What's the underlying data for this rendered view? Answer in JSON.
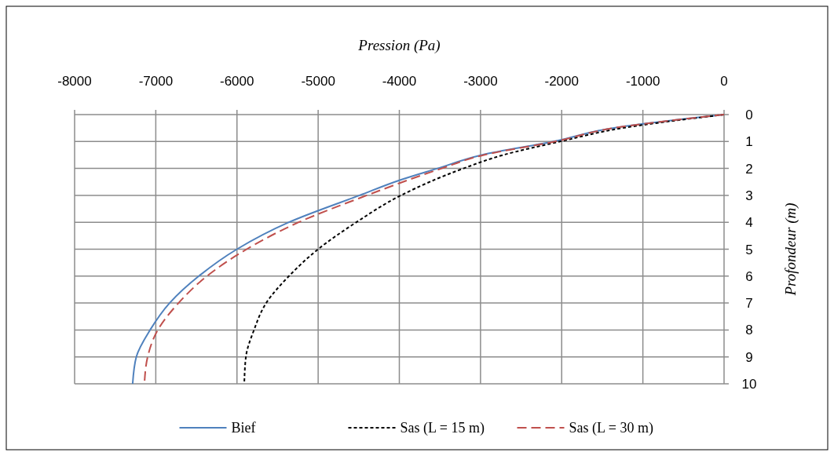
{
  "chart_data": {
    "type": "line",
    "xlabel": "Pression (Pa)",
    "ylabel": "Profondeur (m)",
    "xlim": [
      -8000,
      0
    ],
    "xticks": [
      -8000,
      -7000,
      -6000,
      -5000,
      -4000,
      -3000,
      -2000,
      -1000,
      0
    ],
    "ylim": [
      10,
      0
    ],
    "yticks": [
      0,
      1,
      2,
      3,
      4,
      5,
      6,
      7,
      8,
      9,
      10
    ],
    "grid": true,
    "legend": "bottom",
    "series": [
      {
        "name": "Bief",
        "color": "#4f81bd",
        "line_style": "solid",
        "x": [
          0,
          -1370,
          -2100,
          -2985,
          -3530,
          -4000,
          -4490,
          -5360,
          -6000,
          -6470,
          -6830,
          -7070,
          -7240,
          -7285
        ],
        "values": [
          0,
          0.5,
          1,
          1.5,
          2,
          2.44,
          3,
          4,
          5,
          6,
          7,
          8,
          9,
          10
        ]
      },
      {
        "name": "Sas (L = 15 m)",
        "color": "#000000",
        "line_style": "dotted",
        "x": [
          0,
          -1250,
          -2020,
          -2720,
          -3210,
          -3980,
          -4530,
          -5000,
          -5360,
          -5640,
          -5790,
          -5890,
          -5910
        ],
        "values": [
          0,
          0.5,
          1,
          1.5,
          2,
          3,
          4,
          5,
          6,
          7,
          8,
          9,
          10
        ]
      },
      {
        "name": "Sas (L = 30 m)",
        "color": "#c0504d",
        "line_style": "dashed",
        "x": [
          0,
          -1360,
          -2080,
          -2960,
          -3480,
          -4400,
          -5240,
          -5880,
          -6370,
          -6720,
          -6975,
          -7100,
          -7140
        ],
        "values": [
          0,
          0.5,
          1,
          1.5,
          2,
          3,
          4,
          5,
          6,
          7,
          8,
          9,
          10
        ]
      }
    ]
  }
}
